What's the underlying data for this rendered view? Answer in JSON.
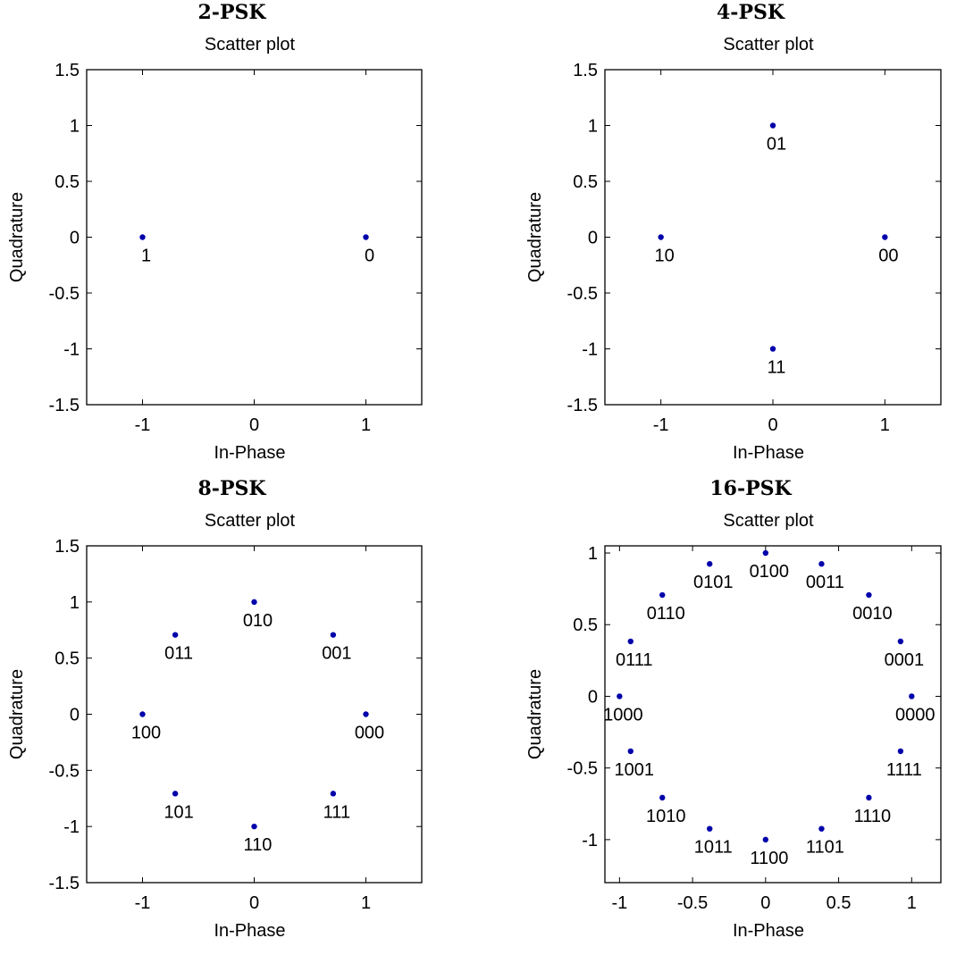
{
  "chart_data": [
    {
      "type": "scatter",
      "title": "2-PSK",
      "subtitle": "Scatter plot",
      "xlabel": "In-Phase",
      "ylabel": "Quadrature",
      "xlim": [
        -1.5,
        1.5
      ],
      "ylim": [
        -1.5,
        1.5
      ],
      "xticks": [
        {
          "v": -1,
          "label": "-1"
        },
        {
          "v": 0,
          "label": "0"
        },
        {
          "v": 1,
          "label": "1"
        }
      ],
      "yticks": [
        {
          "v": 1.5,
          "label": "1.5"
        },
        {
          "v": 1,
          "label": "1"
        },
        {
          "v": 0.5,
          "label": "0.5"
        },
        {
          "v": 0,
          "label": "0"
        },
        {
          "v": -0.5,
          "label": "-0.5"
        },
        {
          "v": -1,
          "label": "-1"
        },
        {
          "v": -1.5,
          "label": "-1.5"
        }
      ],
      "points": [
        {
          "x": 1,
          "y": 0,
          "label": "0"
        },
        {
          "x": -1,
          "y": 0,
          "label": "1"
        }
      ]
    },
    {
      "type": "scatter",
      "title": "4-PSK",
      "subtitle": "Scatter plot",
      "xlabel": "In-Phase",
      "ylabel": "Quadrature",
      "xlim": [
        -1.5,
        1.5
      ],
      "ylim": [
        -1.5,
        1.5
      ],
      "xticks": [
        {
          "v": -1,
          "label": "-1"
        },
        {
          "v": 0,
          "label": "0"
        },
        {
          "v": 1,
          "label": "1"
        }
      ],
      "yticks": [
        {
          "v": 1.5,
          "label": "1.5"
        },
        {
          "v": 1,
          "label": "1"
        },
        {
          "v": 0.5,
          "label": "0.5"
        },
        {
          "v": 0,
          "label": "0"
        },
        {
          "v": -0.5,
          "label": "-0.5"
        },
        {
          "v": -1,
          "label": "-1"
        },
        {
          "v": -1.5,
          "label": "-1.5"
        }
      ],
      "points": [
        {
          "x": 1,
          "y": 0,
          "label": "00"
        },
        {
          "x": 0,
          "y": 1,
          "label": "01"
        },
        {
          "x": -1,
          "y": 0,
          "label": "10"
        },
        {
          "x": 0,
          "y": -1,
          "label": "11"
        }
      ]
    },
    {
      "type": "scatter",
      "title": "8-PSK",
      "subtitle": "Scatter plot",
      "xlabel": "In-Phase",
      "ylabel": "Quadrature",
      "xlim": [
        -1.5,
        1.5
      ],
      "ylim": [
        -1.5,
        1.5
      ],
      "xticks": [
        {
          "v": -1,
          "label": "-1"
        },
        {
          "v": 0,
          "label": "0"
        },
        {
          "v": 1,
          "label": "1"
        }
      ],
      "yticks": [
        {
          "v": 1.5,
          "label": "1.5"
        },
        {
          "v": 1,
          "label": "1"
        },
        {
          "v": 0.5,
          "label": "0.5"
        },
        {
          "v": 0,
          "label": "0"
        },
        {
          "v": -0.5,
          "label": "-0.5"
        },
        {
          "v": -1,
          "label": "-1"
        },
        {
          "v": -1.5,
          "label": "-1.5"
        }
      ],
      "points": [
        {
          "x": 1,
          "y": 0,
          "label": "000"
        },
        {
          "x": 0.707,
          "y": 0.707,
          "label": "001"
        },
        {
          "x": 0,
          "y": 1,
          "label": "010"
        },
        {
          "x": -0.707,
          "y": 0.707,
          "label": "011"
        },
        {
          "x": -1,
          "y": 0,
          "label": "100"
        },
        {
          "x": -0.707,
          "y": -0.707,
          "label": "101"
        },
        {
          "x": 0,
          "y": -1,
          "label": "110"
        },
        {
          "x": 0.707,
          "y": -0.707,
          "label": "111"
        }
      ]
    },
    {
      "type": "scatter",
      "title": "16-PSK",
      "subtitle": "Scatter plot",
      "xlabel": "In-Phase",
      "ylabel": "Quadrature",
      "xlim": [
        -1.1,
        1.2
      ],
      "ylim": [
        -1.3,
        1.05
      ],
      "xticks": [
        {
          "v": -1,
          "label": "-1"
        },
        {
          "v": -0.5,
          "label": "-0.5"
        },
        {
          "v": 0,
          "label": "0"
        },
        {
          "v": 0.5,
          "label": "0.5"
        },
        {
          "v": 1,
          "label": "1"
        }
      ],
      "yticks": [
        {
          "v": 1,
          "label": "1"
        },
        {
          "v": 0.5,
          "label": "0.5"
        },
        {
          "v": 0,
          "label": "0"
        },
        {
          "v": -0.5,
          "label": "-0.5"
        },
        {
          "v": -1,
          "label": "-1"
        }
      ],
      "points": [
        {
          "x": 1,
          "y": 0,
          "label": "0000"
        },
        {
          "x": 0.924,
          "y": 0.383,
          "label": "0001"
        },
        {
          "x": 0.707,
          "y": 0.707,
          "label": "0010"
        },
        {
          "x": 0.383,
          "y": 0.924,
          "label": "0011"
        },
        {
          "x": 0,
          "y": 1,
          "label": "0100"
        },
        {
          "x": -0.383,
          "y": 0.924,
          "label": "0101"
        },
        {
          "x": -0.707,
          "y": 0.707,
          "label": "0110"
        },
        {
          "x": -0.924,
          "y": 0.383,
          "label": "0111"
        },
        {
          "x": -1,
          "y": 0,
          "label": "1000"
        },
        {
          "x": -0.924,
          "y": -0.383,
          "label": "1001"
        },
        {
          "x": -0.707,
          "y": -0.707,
          "label": "1010"
        },
        {
          "x": -0.383,
          "y": -0.924,
          "label": "1011"
        },
        {
          "x": 0,
          "y": -1,
          "label": "1100"
        },
        {
          "x": 0.383,
          "y": -0.924,
          "label": "1101"
        },
        {
          "x": 0.707,
          "y": -0.707,
          "label": "1110"
        },
        {
          "x": 0.924,
          "y": -0.383,
          "label": "1111"
        }
      ]
    }
  ]
}
